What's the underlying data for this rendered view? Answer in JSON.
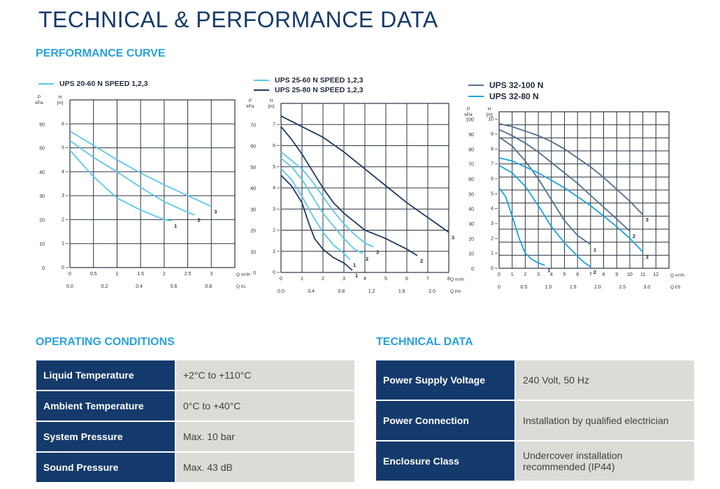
{
  "page": {
    "title": "TECHNICAL & PERFORMANCE DATA"
  },
  "performance": {
    "heading": "PERFORMANCE CURVE"
  },
  "chart_data": [
    {
      "type": "line",
      "legend": [
        {
          "name": "UPS 20-60 N SPEED 1,2,3",
          "color": "#5bc8ea"
        }
      ],
      "y_left_label": "P\nkPa",
      "y_right_label": "H\n[m]",
      "y_pressure_ticks": [
        0,
        10,
        20,
        30,
        40,
        50,
        60
      ],
      "y_head_ticks": [
        0,
        1,
        2,
        3,
        4,
        5,
        6
      ],
      "x_flow_ticks": [
        "0",
        "0.5",
        "1",
        "1.5",
        "2",
        "2.5",
        "3"
      ],
      "x_flow_unit": "Q m³/h",
      "x_ls_ticks": [
        "0.0",
        "0.2",
        "0.4",
        "0.6",
        "0.8"
      ],
      "x_ls_unit": "Q l/s",
      "xlim": [
        0,
        3.5
      ],
      "ylim": [
        0,
        7
      ],
      "series": [
        {
          "label": "1",
          "color": "#5bc8ea",
          "points": [
            [
              0,
              4.9
            ],
            [
              0.5,
              3.8
            ],
            [
              1,
              2.9
            ],
            [
              1.5,
              2.4
            ],
            [
              2,
              2.0
            ],
            [
              2.15,
              1.95
            ]
          ]
        },
        {
          "label": "2",
          "color": "#5bc8ea",
          "points": [
            [
              0,
              5.3
            ],
            [
              0.5,
              4.6
            ],
            [
              1,
              4.0
            ],
            [
              1.5,
              3.35
            ],
            [
              2,
              2.75
            ],
            [
              2.5,
              2.3
            ],
            [
              2.65,
              2.2
            ]
          ]
        },
        {
          "label": "3",
          "color": "#5bc8ea",
          "points": [
            [
              0,
              5.7
            ],
            [
              0.5,
              5.1
            ],
            [
              1,
              4.5
            ],
            [
              1.5,
              3.95
            ],
            [
              2,
              3.45
            ],
            [
              2.5,
              3.0
            ],
            [
              3.0,
              2.55
            ]
          ]
        }
      ]
    },
    {
      "type": "line",
      "legend": [
        {
          "name": "UPS 25-60 N SPEED 1,2,3",
          "color": "#5bc8ea"
        },
        {
          "name": "UPS 25-80 N SPEED 1,2,3",
          "color": "#1d3a61"
        }
      ],
      "y_left_label": "P\nkPa",
      "y_right_label": "H\n[m]",
      "y_pressure_ticks": [
        0,
        10,
        20,
        30,
        40,
        50,
        60,
        70
      ],
      "y_head_ticks": [
        0,
        1,
        2,
        3,
        4,
        5,
        6,
        7
      ],
      "x_flow_ticks": [
        "0",
        "1",
        "2",
        "3",
        "4",
        "5",
        "6",
        "7",
        "8"
      ],
      "x_flow_unit": "Q m³/h",
      "x_ls_ticks": [
        "0.0",
        "0.4",
        "0.8",
        "1.2",
        "1.6",
        "2.0"
      ],
      "x_ls_unit": "Q l/m",
      "xlim": [
        0,
        8
      ],
      "ylim": [
        0,
        8
      ],
      "series": [
        {
          "label": "1",
          "color": "#5bc8ea",
          "points": [
            [
              0,
              4.9
            ],
            [
              0.5,
              4.4
            ],
            [
              1,
              3.6
            ],
            [
              1.5,
              2.7
            ],
            [
              2,
              1.9
            ],
            [
              2.5,
              1.3
            ],
            [
              3,
              0.9
            ],
            [
              3.3,
              0.6
            ]
          ]
        },
        {
          "label": "2",
          "color": "#5bc8ea",
          "points": [
            [
              0,
              5.4
            ],
            [
              0.5,
              5.0
            ],
            [
              1,
              4.4
            ],
            [
              1.5,
              3.6
            ],
            [
              2,
              2.8
            ],
            [
              2.5,
              2.2
            ],
            [
              3,
              1.6
            ],
            [
              3.5,
              1.1
            ],
            [
              3.9,
              0.9
            ]
          ]
        },
        {
          "label": "3",
          "color": "#5bc8ea",
          "points": [
            [
              0,
              5.7
            ],
            [
              1,
              4.9
            ],
            [
              1.5,
              4.3
            ],
            [
              2,
              3.6
            ],
            [
              2.5,
              2.9
            ],
            [
              3,
              2.3
            ],
            [
              3.5,
              1.8
            ],
            [
              4,
              1.4
            ],
            [
              4.4,
              1.2
            ]
          ]
        },
        {
          "label": "1",
          "color": "#1d3a61",
          "points": [
            [
              0,
              4.6
            ],
            [
              0.5,
              4.1
            ],
            [
              1,
              3.3
            ],
            [
              1.3,
              2.4
            ],
            [
              1.6,
              1.6
            ],
            [
              2,
              1.1
            ],
            [
              2.5,
              0.7
            ],
            [
              3,
              0.45
            ],
            [
              3.4,
              0.1
            ]
          ]
        },
        {
          "label": "2",
          "color": "#1d3a61",
          "points": [
            [
              0,
              6.9
            ],
            [
              0.5,
              6.3
            ],
            [
              1,
              5.6
            ],
            [
              1.5,
              4.8
            ],
            [
              2,
              4.0
            ],
            [
              2.5,
              3.3
            ],
            [
              3,
              2.8
            ],
            [
              4,
              2.0
            ],
            [
              5,
              1.6
            ],
            [
              6,
              1.1
            ],
            [
              6.5,
              0.8
            ]
          ]
        },
        {
          "label": "3",
          "color": "#1d3a61",
          "points": [
            [
              0,
              7.4
            ],
            [
              1,
              6.9
            ],
            [
              2,
              6.4
            ],
            [
              3,
              5.7
            ],
            [
              4,
              4.9
            ],
            [
              5,
              4.1
            ],
            [
              6,
              3.3
            ],
            [
              7,
              2.6
            ],
            [
              8,
              1.9
            ]
          ]
        }
      ]
    },
    {
      "type": "line",
      "legend": [
        {
          "name": "UPS 32-100 N",
          "color": "#4f6f8f"
        },
        {
          "name": "UPS 32-80 N",
          "color": "#1aa3dd"
        }
      ],
      "y_left_label": "P\nkPa",
      "y_right_label": "H\n[m]",
      "y_pressure_ticks": [
        0,
        10,
        20,
        30,
        40,
        50,
        60,
        70,
        80,
        90,
        100
      ],
      "y_head_ticks": [
        0,
        1,
        2,
        3,
        4,
        5,
        6,
        7,
        8,
        9,
        10
      ],
      "x_flow_ticks": [
        "0",
        "1",
        "2",
        "3",
        "4",
        "5",
        "6",
        "7",
        "8",
        "9",
        "10",
        "11",
        "12"
      ],
      "x_flow_unit": "Q m³/h",
      "x_ls_ticks": [
        "0",
        "0.5",
        "1.0",
        "1.5",
        "2.0",
        "2.5",
        "3.0"
      ],
      "x_ls_unit": "Q l/S",
      "xlim": [
        0,
        13
      ],
      "ylim": [
        0,
        10.5
      ],
      "series": [
        {
          "label": "1",
          "color": "#4f6f8f",
          "points": [
            [
              0,
              8.8
            ],
            [
              1,
              8.2
            ],
            [
              2,
              7.2
            ],
            [
              3,
              6.0
            ],
            [
              4,
              4.6
            ],
            [
              5,
              3.2
            ],
            [
              6,
              2.2
            ],
            [
              7,
              1.6
            ]
          ]
        },
        {
          "label": "2",
          "color": "#4f6f8f",
          "points": [
            [
              0,
              9.3
            ],
            [
              1,
              8.9
            ],
            [
              2,
              8.4
            ],
            [
              3,
              7.8
            ],
            [
              4,
              7.1
            ],
            [
              5,
              6.4
            ],
            [
              6,
              5.7
            ],
            [
              7,
              4.9
            ],
            [
              8,
              4.1
            ],
            [
              9,
              3.3
            ],
            [
              10,
              2.5
            ]
          ]
        },
        {
          "label": "3",
          "color": "#4f6f8f",
          "points": [
            [
              0,
              9.7
            ],
            [
              1,
              9.5
            ],
            [
              2,
              9.2
            ],
            [
              3,
              8.9
            ],
            [
              4,
              8.5
            ],
            [
              5,
              8.0
            ],
            [
              6,
              7.4
            ],
            [
              7,
              6.8
            ],
            [
              8,
              6.1
            ],
            [
              9,
              5.3
            ],
            [
              10,
              4.5
            ],
            [
              11,
              3.6
            ]
          ]
        },
        {
          "label": "1",
          "color": "#1aa3dd",
          "points": [
            [
              0,
              5.4
            ],
            [
              0.5,
              4.8
            ],
            [
              1,
              3.5
            ],
            [
              1.5,
              2.1
            ],
            [
              2,
              1.0
            ],
            [
              2.5,
              0.6
            ],
            [
              3,
              0.35
            ],
            [
              3.5,
              0.2
            ]
          ]
        },
        {
          "label": "2",
          "color": "#1aa3dd",
          "points": [
            [
              0,
              6.9
            ],
            [
              1,
              6.4
            ],
            [
              2,
              5.5
            ],
            [
              3,
              4.2
            ],
            [
              4,
              2.8
            ],
            [
              5,
              1.7
            ],
            [
              6,
              0.8
            ],
            [
              6.5,
              0.4
            ],
            [
              7,
              0.1
            ]
          ]
        },
        {
          "label": "3",
          "color": "#1aa3dd",
          "points": [
            [
              0,
              7.4
            ],
            [
              1,
              7.2
            ],
            [
              2,
              6.8
            ],
            [
              3,
              6.4
            ],
            [
              4,
              5.9
            ],
            [
              5,
              5.4
            ],
            [
              6,
              4.8
            ],
            [
              7,
              4.2
            ],
            [
              8,
              3.5
            ],
            [
              9,
              2.8
            ],
            [
              10,
              2.0
            ],
            [
              11,
              1.1
            ]
          ]
        }
      ]
    }
  ],
  "operating": {
    "heading": "OPERATING CONDITIONS",
    "rows": [
      {
        "key": "Liquid Temperature",
        "value": "+2°C to +110°C"
      },
      {
        "key": "Ambient Temperature",
        "value": "0°C to +40°C"
      },
      {
        "key": "System Pressure",
        "value": "Max. 10 bar"
      },
      {
        "key": "Sound Pressure",
        "value": "Max. 43 dB"
      }
    ]
  },
  "technical": {
    "heading": "TECHNICAL DATA",
    "rows": [
      {
        "key": "Power Supply Voltage",
        "value": "240 Volt, 50 Hz"
      },
      {
        "key": "Power Connection",
        "value": "Installation by qualified electrician"
      },
      {
        "key": "Enclosure Class",
        "value": "Undercover installation recommended (IP44)"
      }
    ]
  }
}
